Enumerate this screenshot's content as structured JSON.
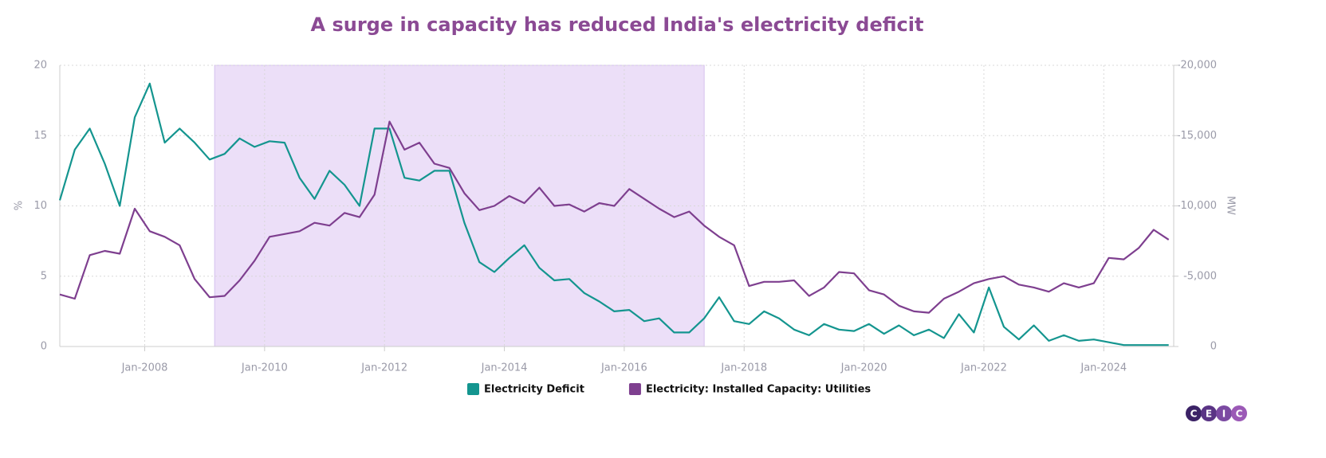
{
  "chart_data": {
    "type": "line",
    "title": "A surge in capacity has reduced India's electricity deficit",
    "ylabel": "%",
    "y2label": "MW",
    "x": [
      "2006-08",
      "2006-11",
      "2007-02",
      "2007-05",
      "2007-08",
      "2007-11",
      "2008-02",
      "2008-05",
      "2008-08",
      "2008-11",
      "2009-02",
      "2009-05",
      "2009-08",
      "2009-11",
      "2010-02",
      "2010-05",
      "2010-08",
      "2010-11",
      "2011-02",
      "2011-05",
      "2011-08",
      "2011-11",
      "2012-02",
      "2012-05",
      "2012-08",
      "2012-11",
      "2013-02",
      "2013-05",
      "2013-08",
      "2013-11",
      "2014-02",
      "2014-05",
      "2014-08",
      "2014-11",
      "2015-02",
      "2015-05",
      "2015-08",
      "2015-11",
      "2016-02",
      "2016-05",
      "2016-08",
      "2016-11",
      "2017-02",
      "2017-05",
      "2017-08",
      "2017-11",
      "2018-02",
      "2018-05",
      "2018-08",
      "2018-11",
      "2019-02",
      "2019-05",
      "2019-08",
      "2019-11",
      "2020-02",
      "2020-05",
      "2020-08",
      "2020-11",
      "2021-02",
      "2021-05",
      "2021-08",
      "2021-11",
      "2022-02",
      "2022-05",
      "2022-08",
      "2022-11",
      "2023-02",
      "2023-05",
      "2023-08",
      "2023-11",
      "2024-02",
      "2024-05",
      "2024-08",
      "2024-11",
      "2025-02"
    ],
    "series": [
      {
        "name": "Electricity Deficit",
        "color": "#14958f",
        "axis": "y",
        "values": [
          10.4,
          14,
          15.5,
          13,
          10,
          16.3,
          18.7,
          14.5,
          15.5,
          14.5,
          13.3,
          13.7,
          14.8,
          14.2,
          14.6,
          14.5,
          12,
          10.5,
          12.5,
          11.5,
          10,
          15.5,
          15.5,
          12,
          11.8,
          12.5,
          12.5,
          8.8,
          6,
          5.3,
          6.3,
          7.2,
          5.6,
          4.7,
          4.8,
          3.8,
          3.2,
          2.5,
          2.6,
          1.8,
          2,
          1,
          1,
          2,
          3.5,
          1.8,
          1.6,
          2.5,
          2,
          1.2,
          0.8,
          1.6,
          1.2,
          1.1,
          1.6,
          0.9,
          1.5,
          0.8,
          1.2,
          0.6,
          2.3,
          1,
          4.2,
          1.4,
          0.5,
          1.5,
          0.4,
          0.8,
          0.4,
          0.5,
          0.3,
          0.1,
          0.1,
          0.1,
          0.1
        ]
      },
      {
        "name": "Electricity: Installed Capacity: Utilities",
        "color": "#7e3f8f",
        "axis": "y2",
        "values": [
          -3700,
          -3400,
          -6500,
          -6800,
          -6600,
          -9800,
          -8200,
          -7800,
          -7200,
          -4800,
          -3500,
          -3600,
          -4700,
          -6100,
          -7800,
          -8000,
          -8200,
          -8800,
          -8600,
          -9500,
          -9200,
          -10800,
          -16000,
          -14000,
          -14500,
          -13000,
          -12700,
          -10900,
          -9700,
          -10000,
          -10700,
          -10200,
          -11300,
          -10000,
          -10100,
          -9600,
          -10200,
          -10000,
          -11200,
          -10500,
          -9800,
          -9200,
          -9600,
          -8600,
          -7800,
          -7200,
          -4300,
          -4600,
          -4600,
          -4700,
          -3600,
          -4200,
          -5300,
          -5200,
          -4000,
          -3700,
          -2900,
          -2500,
          -2400,
          -3400,
          -3900,
          -4500,
          -4800,
          -5000,
          -4400,
          -4200,
          -3900,
          -4500,
          -4200,
          -4500,
          -6300,
          -6200,
          -7000,
          -8300,
          -7600
        ]
      }
    ],
    "xlim": [
      "2006-08",
      "2025-03"
    ],
    "xticks": [
      {
        "value": "2008-01",
        "label": "Jan-2008"
      },
      {
        "value": "2010-01",
        "label": "Jan-2010"
      },
      {
        "value": "2012-01",
        "label": "Jan-2012"
      },
      {
        "value": "2014-01",
        "label": "Jan-2014"
      },
      {
        "value": "2016-01",
        "label": "Jan-2016"
      },
      {
        "value": "2018-01",
        "label": "Jan-2018"
      },
      {
        "value": "2020-01",
        "label": "Jan-2020"
      },
      {
        "value": "2022-01",
        "label": "Jan-2022"
      },
      {
        "value": "2024-01",
        "label": "Jan-2024"
      }
    ],
    "ylim": [
      0,
      20
    ],
    "yticks": [
      0,
      5,
      10,
      15,
      20
    ],
    "y2lim": [
      0,
      -20000
    ],
    "y2ticks": [
      0,
      {
        "value": -5000,
        "label": "-5,000"
      },
      {
        "value": -10000,
        "label": "-10,000"
      },
      {
        "value": -15000,
        "label": "-15,000"
      },
      {
        "value": -20000,
        "label": "-20,000"
      }
    ],
    "highlight_range": [
      "2009-03",
      "2017-05"
    ],
    "grid": true,
    "legend": "bottom",
    "logo": [
      "C",
      "E",
      "I",
      "C"
    ]
  }
}
